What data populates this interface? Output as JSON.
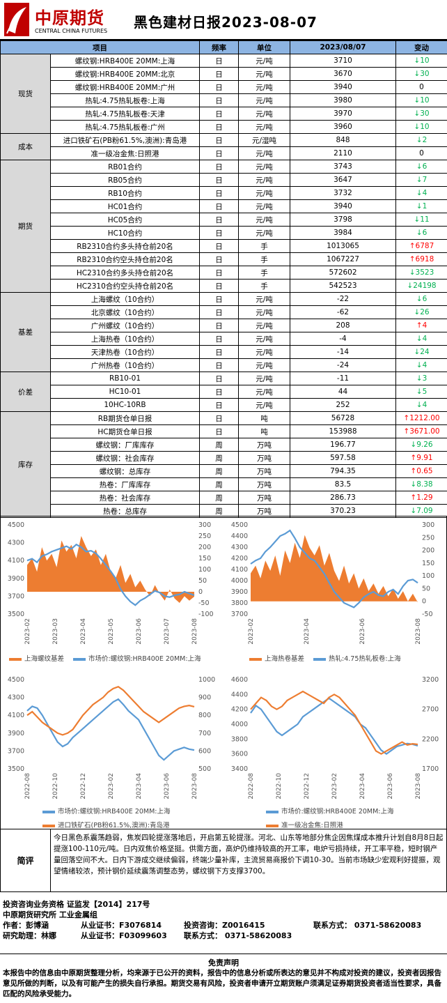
{
  "header": {
    "logo_cn": "中原期货",
    "logo_en": "CENTRAL CHINA FUTURES",
    "title": "黑色建材日报2023-08-07"
  },
  "table": {
    "columns": [
      "项目",
      "频率",
      "单位",
      "2023/08/07",
      "变动"
    ],
    "groups": [
      {
        "category": "现货",
        "rows": [
          {
            "item": "螺纹钢:HRB400E 20MM:上海",
            "freq": "日",
            "unit": "元/吨",
            "value": "3710",
            "dir": "down",
            "change": "10"
          },
          {
            "item": "螺纹钢:HRB400E 20MM:北京",
            "freq": "日",
            "unit": "元/吨",
            "value": "3670",
            "dir": "down",
            "change": "30"
          },
          {
            "item": "螺纹钢:HRB400E 20MM:广州",
            "freq": "日",
            "unit": "元/吨",
            "value": "3940",
            "dir": "flat",
            "change": "0"
          },
          {
            "item": "热轧:4.75热轧板卷:上海",
            "freq": "日",
            "unit": "元/吨",
            "value": "3980",
            "dir": "down",
            "change": "10"
          },
          {
            "item": "热轧:4.75热轧板卷:天津",
            "freq": "日",
            "unit": "元/吨",
            "value": "3970",
            "dir": "down",
            "change": "30"
          },
          {
            "item": "热轧:4.75热轧板卷:广州",
            "freq": "日",
            "unit": "元/吨",
            "value": "3960",
            "dir": "down",
            "change": "10"
          }
        ]
      },
      {
        "category": "成本",
        "rows": [
          {
            "item": "进口铁矿石(PB粉61.5%,澳洲):青岛港",
            "freq": "日",
            "unit": "元/湿吨",
            "value": "848",
            "dir": "down",
            "change": "2"
          },
          {
            "item": "准一级冶金焦:日照港",
            "freq": "日",
            "unit": "元/吨",
            "value": "2110",
            "dir": "flat",
            "change": "0"
          }
        ]
      },
      {
        "category": "期货",
        "rows": [
          {
            "item": "RB01合约",
            "freq": "日",
            "unit": "元/吨",
            "value": "3743",
            "dir": "down",
            "change": "6"
          },
          {
            "item": "RB05合约",
            "freq": "日",
            "unit": "元/吨",
            "value": "3647",
            "dir": "down",
            "change": "7"
          },
          {
            "item": "RB10合约",
            "freq": "日",
            "unit": "元/吨",
            "value": "3732",
            "dir": "down",
            "change": "4"
          },
          {
            "item": "HC01合约",
            "freq": "日",
            "unit": "元/吨",
            "value": "3940",
            "dir": "down",
            "change": "1"
          },
          {
            "item": "HC05合约",
            "freq": "日",
            "unit": "元/吨",
            "value": "3798",
            "dir": "down",
            "change": "11"
          },
          {
            "item": "HC10合约",
            "freq": "日",
            "unit": "元/吨",
            "value": "3984",
            "dir": "down",
            "change": "6"
          },
          {
            "item": "RB2310合约多头持仓前20名",
            "freq": "日",
            "unit": "手",
            "value": "1013065",
            "dir": "up",
            "change": "6787"
          },
          {
            "item": "RB2310合约空头持仓前20名",
            "freq": "日",
            "unit": "手",
            "value": "1067227",
            "dir": "up",
            "change": "6918"
          },
          {
            "item": "HC2310合约多头持仓前20名",
            "freq": "日",
            "unit": "手",
            "value": "572602",
            "dir": "down",
            "change": "3523"
          },
          {
            "item": "HC2310合约空头持仓前20名",
            "freq": "日",
            "unit": "手",
            "value": "542523",
            "dir": "down",
            "change": "24198"
          }
        ]
      },
      {
        "category": "基差",
        "rows": [
          {
            "item": "上海螺纹（10合约）",
            "freq": "日",
            "unit": "元/吨",
            "value": "-22",
            "dir": "down",
            "change": "6"
          },
          {
            "item": "北京螺纹（10合约）",
            "freq": "日",
            "unit": "元/吨",
            "value": "-62",
            "dir": "down",
            "change": "26"
          },
          {
            "item": "广州螺纹（10合约）",
            "freq": "日",
            "unit": "元/吨",
            "value": "208",
            "dir": "up",
            "change": "4"
          },
          {
            "item": "上海热卷（10合约）",
            "freq": "日",
            "unit": "元/吨",
            "value": "-4",
            "dir": "down",
            "change": "4"
          },
          {
            "item": "天津热卷（10合约）",
            "freq": "日",
            "unit": "元/吨",
            "value": "-14",
            "dir": "down",
            "change": "24"
          },
          {
            "item": "广州热卷（10合约）",
            "freq": "日",
            "unit": "元/吨",
            "value": "-24",
            "dir": "down",
            "change": "4"
          }
        ]
      },
      {
        "category": "价差",
        "rows": [
          {
            "item": "RB10-01",
            "freq": "日",
            "unit": "元/吨",
            "value": "-11",
            "dir": "down",
            "change": "3"
          },
          {
            "item": "HC10-01",
            "freq": "日",
            "unit": "元/吨",
            "value": "44",
            "dir": "down",
            "change": "5"
          },
          {
            "item": "10HC-10RB",
            "freq": "日",
            "unit": "元/吨",
            "value": "252",
            "dir": "down",
            "change": "4"
          }
        ]
      },
      {
        "category": "库存",
        "rows": [
          {
            "item": "RB期货仓单日报",
            "freq": "日",
            "unit": "吨",
            "value": "56728",
            "dir": "up",
            "change": "1212.00"
          },
          {
            "item": "HC期货仓单日报",
            "freq": "日",
            "unit": "吨",
            "value": "153988",
            "dir": "up",
            "change": "3671.00"
          },
          {
            "item": "螺纹钢：厂库库存",
            "freq": "周",
            "unit": "万吨",
            "value": "196.77",
            "dir": "down",
            "change": "9.26"
          },
          {
            "item": "螺纹钢：社会库存",
            "freq": "周",
            "unit": "万吨",
            "value": "597.58",
            "dir": "up",
            "change": "9.91"
          },
          {
            "item": "螺纹钢：总库存",
            "freq": "周",
            "unit": "万吨",
            "value": "794.35",
            "dir": "up",
            "change": "0.65"
          },
          {
            "item": "热卷：厂库库存",
            "freq": "周",
            "unit": "万吨",
            "value": "83.5",
            "dir": "down",
            "change": "8.38"
          },
          {
            "item": "热卷：社会库存",
            "freq": "周",
            "unit": "万吨",
            "value": "286.73",
            "dir": "up",
            "change": "1.29"
          },
          {
            "item": "热卷：总库存",
            "freq": "周",
            "unit": "万吨",
            "value": "370.23",
            "dir": "down",
            "change": "7.09"
          }
        ]
      }
    ]
  },
  "colors": {
    "up": "#ff0000",
    "down": "#00b050",
    "orange": "#ed7d31",
    "blue": "#5b9bd5"
  },
  "chart_data": [
    {
      "type": "area",
      "left_axis": {
        "ticks": [
          "4500",
          "4300",
          "4100",
          "3900",
          "3700",
          "3500"
        ],
        "range": [
          3500,
          4500
        ]
      },
      "right_axis": {
        "ticks": [
          "300",
          "250",
          "200",
          "150",
          "100",
          "50",
          "0",
          "-50",
          "-100"
        ],
        "range": [
          -100,
          300
        ]
      },
      "x_ticks": [
        "2023-02",
        "2023-03",
        "2023-04",
        "2023-05",
        "2023-06",
        "2023-07",
        "2023-08"
      ],
      "series": [
        {
          "name": "上海螺纹基差",
          "kind": "area",
          "axis": "right",
          "values": [
            120,
            150,
            90,
            200,
            140,
            170,
            110,
            230,
            180,
            210,
            150,
            250,
            200,
            160,
            190,
            120,
            170,
            90,
            60,
            120,
            40,
            80,
            20,
            50,
            10,
            -20,
            30,
            -10,
            -40,
            10,
            -30,
            -50,
            -20,
            -40,
            -22
          ]
        },
        {
          "name": "市场价:螺纹钢:HRB400E 20MM:上海",
          "kind": "line",
          "axis": "left",
          "values": [
            4100,
            4120,
            4080,
            4150,
            4170,
            4200,
            4220,
            4240,
            4260,
            4230,
            4280,
            4250,
            4200,
            4210,
            4180,
            4120,
            4050,
            3980,
            3900,
            3780,
            3700,
            3640,
            3600,
            3650,
            3680,
            3720,
            3760,
            3740,
            3700,
            3690,
            3710,
            3720,
            3750,
            3730,
            3710
          ]
        }
      ]
    },
    {
      "type": "area",
      "left_axis": {
        "ticks": [
          "4500",
          "4400",
          "4300",
          "4200",
          "4100",
          "4000",
          "3900",
          "3800",
          "3700"
        ],
        "range": [
          3700,
          4500
        ]
      },
      "right_axis": {
        "ticks": [
          "300",
          "250",
          "200",
          "150",
          "100",
          "50",
          "0",
          "-50"
        ],
        "range": [
          -50,
          300
        ]
      },
      "x_ticks": [
        "2023-02",
        "2023-04",
        "2023-06",
        "2023-08"
      ],
      "series": [
        {
          "name": "上海热卷基差",
          "kind": "area",
          "axis": "right",
          "values": [
            110,
            140,
            90,
            160,
            120,
            180,
            100,
            200,
            150,
            230,
            170,
            260,
            210,
            180,
            220,
            140,
            190,
            120,
            80,
            140,
            70,
            110,
            50,
            90,
            40,
            70,
            30,
            60,
            20,
            50,
            10,
            40,
            0,
            30,
            -4
          ]
        },
        {
          "name": "热轧:4.75热轧板卷:上海",
          "kind": "line",
          "axis": "left",
          "values": [
            4150,
            4180,
            4200,
            4260,
            4300,
            4350,
            4400,
            4420,
            4450,
            4380,
            4300,
            4250,
            4200,
            4180,
            4120,
            4060,
            3980,
            3900,
            3850,
            3800,
            3780,
            3760,
            3800,
            3850,
            3880,
            3900,
            3870,
            3860,
            3900,
            3920,
            3880,
            3950,
            4000,
            4010,
            3980
          ]
        }
      ]
    },
    {
      "type": "line",
      "left_axis": {
        "ticks": [
          "4500",
          "4300",
          "4100",
          "3900",
          "3700",
          "3500"
        ],
        "range": [
          3500,
          4500
        ]
      },
      "right_axis": {
        "ticks": [
          "1000",
          "900",
          "800",
          "700",
          "600",
          "500"
        ],
        "range": [
          500,
          1000
        ]
      },
      "x_ticks": [
        "2022-08",
        "2022-10",
        "2022-12",
        "2023-02",
        "2023-04",
        "2023-06",
        "2023-08"
      ],
      "series": [
        {
          "name": "市场价:螺纹钢:HRB400E 20MM:上海",
          "kind": "line",
          "axis": "left",
          "values": [
            4150,
            4200,
            4180,
            4100,
            4000,
            3900,
            3800,
            3750,
            3780,
            3850,
            3900,
            3950,
            4000,
            4050,
            4100,
            4150,
            4200,
            4250,
            4280,
            4220,
            4150,
            4100,
            4050,
            3950,
            3850,
            3750,
            3650,
            3600,
            3650,
            3700,
            3720,
            3740,
            3720,
            3710
          ]
        },
        {
          "name": "进口铁矿石(PB粉61.5%,澳洲):青岛港",
          "kind": "line",
          "axis": "right",
          "values": [
            800,
            820,
            790,
            760,
            740,
            720,
            700,
            690,
            700,
            720,
            760,
            800,
            830,
            860,
            880,
            900,
            930,
            950,
            960,
            940,
            910,
            880,
            850,
            820,
            800,
            780,
            760,
            780,
            800,
            820,
            840,
            850,
            855,
            848
          ]
        }
      ]
    },
    {
      "type": "line",
      "left_axis": {
        "ticks": [
          "4600",
          "4400",
          "4200",
          "4000",
          "3800",
          "3600",
          "3400"
        ],
        "range": [
          3400,
          4600
        ]
      },
      "right_axis": {
        "ticks": [
          "3200",
          "2700",
          "2200",
          "1700"
        ],
        "range": [
          1700,
          3200
        ]
      },
      "x_ticks": [
        "2022-08",
        "2022-10",
        "2022-12",
        "2023-02",
        "2023-04",
        "2023-06",
        "2023-08"
      ],
      "series": [
        {
          "name": "市场价:螺纹钢:HRB400E 20MM:上海",
          "kind": "line",
          "axis": "left",
          "values": [
            4150,
            4250,
            4200,
            4100,
            4000,
            3900,
            3850,
            3900,
            3950,
            4000,
            4100,
            4150,
            4200,
            4250,
            4300,
            4350,
            4300,
            4250,
            4200,
            4150,
            4100,
            4000,
            3950,
            3850,
            3750,
            3650,
            3600,
            3650,
            3700,
            3720,
            3740,
            3730,
            3710
          ]
        },
        {
          "name": "准一级冶金焦:日照港",
          "kind": "line",
          "axis": "right",
          "values": [
            2700,
            2800,
            2900,
            2850,
            2750,
            2700,
            2750,
            2850,
            2900,
            2950,
            3000,
            2950,
            2900,
            2850,
            2800,
            2900,
            2950,
            2900,
            2800,
            2700,
            2600,
            2450,
            2300,
            2150,
            2000,
            1950,
            2000,
            2050,
            2100,
            2150,
            2100,
            2120,
            2110
          ]
        }
      ]
    }
  ],
  "comment": {
    "label": "简评",
    "text": "今日黑色系震荡趋弱，焦炭四轮提涨落地后，开启第五轮提涨。河北、山东等地部分焦企因焦煤成本推升计划自8月8日起提涨100-110元/吨。日内双焦价格坚挺。供需方面，高炉仍维持较高的开工率，电炉亏损持续，开工率平稳，短时钢产量回落空间不大。日内下游成交继续偏弱，终端少量补库，主流贸易商报价下调10-30。当前市场缺少宏观利好提振，观望情绪较浓，预计钢价延续震荡调整态势，螺纹钢下方支撑3700。"
  },
  "footer": {
    "qualification": "投资咨询业务资格   证监发【2014】217号",
    "institute": "中原期货研究所   工业金属组",
    "author_label": "作者：彭博涵",
    "author_cert": "从业证书：F3076814",
    "author_consult": "投资咨询：Z0016415",
    "contact": "联系方式：  0371-58620083",
    "assistant_label": "研究助理：林娜",
    "assistant_cert": "从业证书：F03099603",
    "assistant_contact": "联系方式：  0371-58620083",
    "disclaimer_title": "免责声明",
    "disclaimer_text": "本报告中的信息由中原期货整理分析，均来源于已公开的资料，报告中的信息分析或所表达的意见并不构成对投资的建议，投资者因报告意见所做的判断，以及有可能产生的损失自行承担。期货交易有风险，投资者申请开立期货账户须满足证券期货投资者适当性要求，具备匹配的风险承受能力。"
  }
}
